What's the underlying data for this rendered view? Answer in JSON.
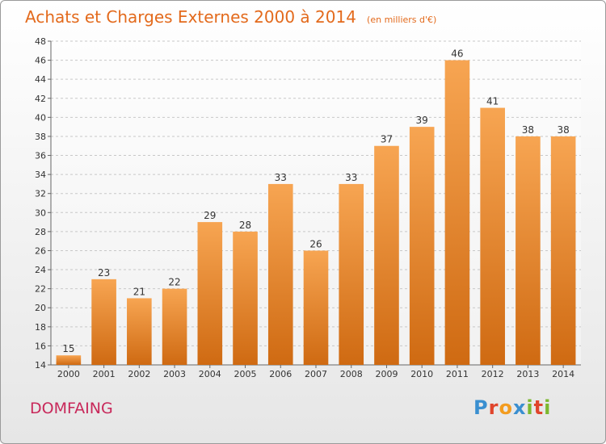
{
  "header": {
    "title": "Achats et Charges Externes 2000 à 2014",
    "subtitle": "(en milliers d'€)"
  },
  "commune": "DOMFAING",
  "logo": {
    "letters": [
      "P",
      "r",
      "o",
      "x",
      "i",
      "t",
      "i"
    ],
    "colors": [
      "#3a8fd0",
      "#e0452c",
      "#f39c1f",
      "#3a8fd0",
      "#7cb82f",
      "#e0452c",
      "#7cb82f"
    ]
  },
  "colors": {
    "bar_light": "#f7a552",
    "bar_dark": "#cf6a12",
    "title": "#e36a1c",
    "commune": "#c8285a"
  },
  "chart_data": {
    "type": "bar",
    "title": "Achats et Charges Externes 2000 à 2014",
    "categories": [
      "2000",
      "2001",
      "2002",
      "2003",
      "2004",
      "2005",
      "2006",
      "2007",
      "2008",
      "2009",
      "2010",
      "2011",
      "2012",
      "2013",
      "2014"
    ],
    "values": [
      15,
      23,
      21,
      22,
      29,
      28,
      33,
      26,
      33,
      37,
      39,
      46,
      41,
      38,
      38
    ],
    "ylim": [
      14,
      48
    ],
    "yticks": [
      14,
      16,
      18,
      20,
      22,
      24,
      26,
      28,
      30,
      32,
      34,
      36,
      38,
      40,
      42,
      44,
      46,
      48
    ],
    "grid": "horizontal dashed",
    "legend": "none"
  }
}
